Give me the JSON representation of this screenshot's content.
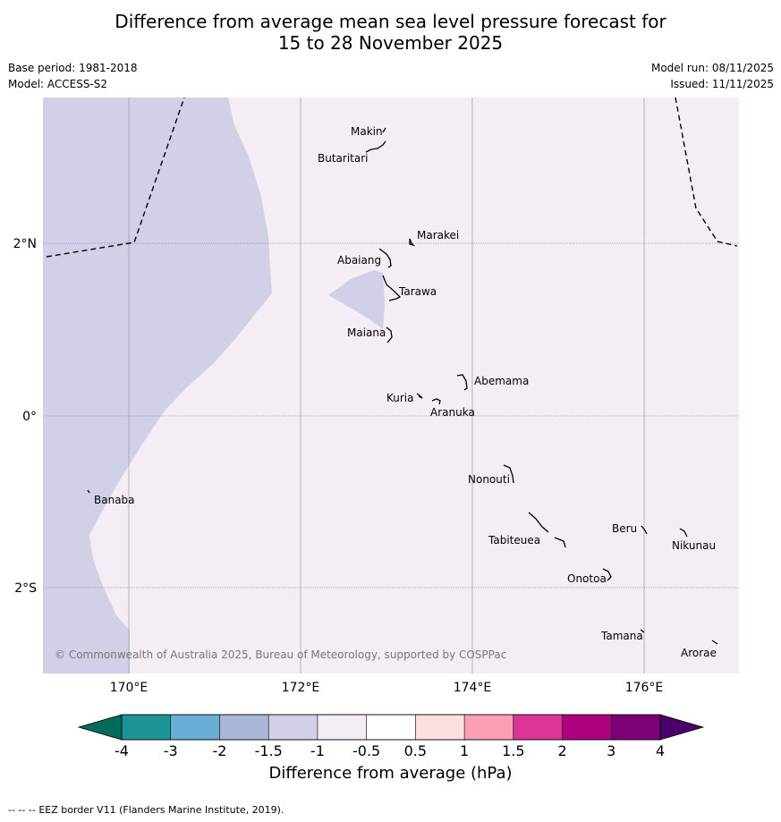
{
  "title": {
    "line1": "Difference from average mean sea level pressure forecast for",
    "line2": "15 to 28 November 2025"
  },
  "meta": {
    "base_period": "Base period: 1981-2018",
    "model": "Model: ACCESS-S2",
    "model_run": "Model run: 08/11/2025",
    "issued": "Issued: 11/11/2025"
  },
  "map": {
    "lon_labels": [
      "170°E",
      "172°E",
      "174°E",
      "176°E"
    ],
    "lat_labels": [
      "2°N",
      "0°",
      "2°S"
    ],
    "islands": [
      "Makin",
      "Butaritari",
      "Marakei",
      "Abaiang",
      "Tarawa",
      "Maiana",
      "Abemama",
      "Kuria",
      "Aranuka",
      "Nonouti",
      "Banaba",
      "Beru",
      "Nikunau",
      "Tabiteuea",
      "Onotoa",
      "Tamana",
      "Arorae"
    ],
    "copyright": "© Commonwealth of Australia 2025, Bureau of Meteorology, supported by COSPPac",
    "colors": {
      "background_fill": "#f5edf6",
      "low_fill": "#d0d1e6",
      "gridline": "#999999",
      "eez_border": "#000000"
    }
  },
  "colorbar": {
    "ticks": [
      "-4",
      "-3",
      "-2",
      "-1.5",
      "-1",
      "-0.5",
      "0.5",
      "1",
      "1.5",
      "2",
      "3",
      "4"
    ],
    "colors": [
      "#1a9494",
      "#6aaed6",
      "#a8b8d6",
      "#d0d1e6",
      "#f5edf6",
      "#ffffff",
      "#fde0dd",
      "#fa9fb5",
      "#dd3497",
      "#ae017e",
      "#7a0177"
    ],
    "under_color": "#016c59",
    "over_color": "#49006a",
    "label": "Difference from average (hPa)"
  },
  "footer": {
    "legend_symbol": "--  --  --",
    "eez_note": "EEZ border V11 (Flanders Marine Institute, 2019)."
  }
}
